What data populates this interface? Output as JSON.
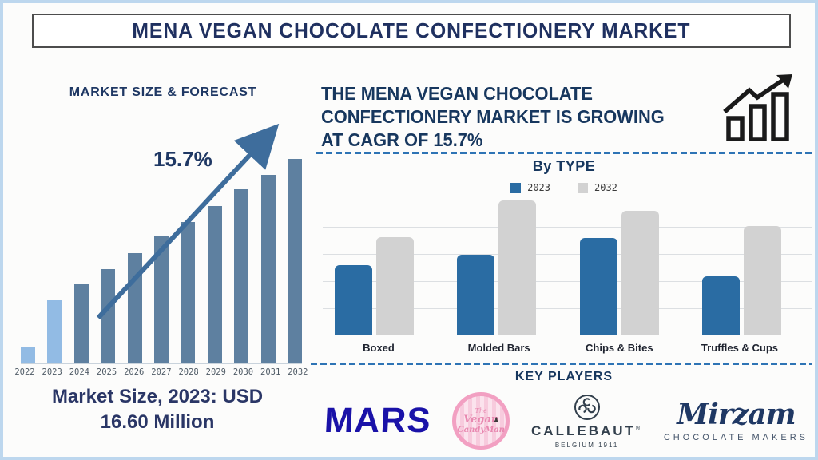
{
  "window": {
    "title": "MENA VEGAN CHOCOLATE CONFECTIONERY MARKET"
  },
  "left_panel": {
    "section_title": "MARKET SIZE & FORECAST",
    "growth_label": "15.7%",
    "market_size_line1": "Market Size, 2023: USD",
    "market_size_line2": "16.60 Million"
  },
  "right_panel": {
    "headline_lines": [
      "THE MENA VEGAN CHOCOLATE",
      "CONFECTIONERY MARKET IS GROWING",
      "AT CAGR OF 15.7%"
    ],
    "by_type_title": "By TYPE",
    "key_players_title": "KEY PLAYERS",
    "logos": [
      {
        "name": "MARS",
        "text": "MARS"
      },
      {
        "name": "The Vegan CandyMan",
        "lines": [
          "The",
          "Vegan",
          "CandyMan"
        ]
      },
      {
        "name": "Callebaut",
        "wordmark": "CALLEBAUT",
        "registered": "®",
        "tagline": "BELGIUM 1911"
      },
      {
        "name": "Mirzam",
        "script": "Mirzam",
        "tagline": "CHOCOLATE MAKERS"
      }
    ]
  },
  "chart_data": [
    {
      "id": "market_size_forecast",
      "type": "bar",
      "title": "MARKET SIZE & FORECAST",
      "categories": [
        "2022",
        "2023",
        "2024",
        "2025",
        "2026",
        "2027",
        "2028",
        "2029",
        "2030",
        "2031",
        "2032"
      ],
      "values_relative_pct": [
        8,
        31,
        39,
        46,
        54,
        62,
        69,
        77,
        85,
        92,
        100
      ],
      "value_note": "no y-axis shown; bar heights relative to 2032 = 100",
      "annotation": "15.7%",
      "known_value": "Market Size, 2023: USD 16.60 Million",
      "highlight_years": [
        "2022",
        "2023"
      ],
      "colors": {
        "highlight": "#92BBE4",
        "default": "#5E80A0",
        "arrow": "#3E6D9C"
      },
      "xlabel": "",
      "ylabel": "",
      "y_axis_shown": false,
      "grid": false
    },
    {
      "id": "by_type",
      "type": "bar",
      "title": "By TYPE",
      "categories": [
        "Boxed",
        "Molded Bars",
        "Chips & Bites",
        "Truffles & Cups"
      ],
      "series": [
        {
          "name": "2023",
          "color": "#2A6CA3",
          "values_relative_pct": [
            51,
            59,
            71,
            43
          ]
        },
        {
          "name": "2032",
          "color": "#D2D2D2",
          "values_relative_pct": [
            72,
            99,
            91,
            80
          ]
        }
      ],
      "value_note": "no y-axis shown; heights relative to plot top = 100",
      "xlabel": "",
      "ylabel": "",
      "y_axis_shown": false,
      "grid": true,
      "legend_position": "top"
    }
  ],
  "colors": {
    "navy": "#17375E",
    "dash_blue": "#2E74B5",
    "frame_blue": "#BDD7EE",
    "mars_blue": "#1A12A8",
    "candyman_pink": "#F2A0C2",
    "callebaut_charcoal": "#33404D",
    "mirzam_navy": "#1F3864"
  }
}
